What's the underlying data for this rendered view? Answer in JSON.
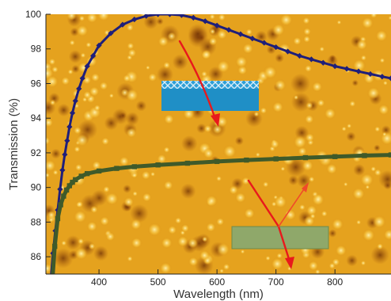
{
  "chart_data": {
    "type": "line",
    "title": "",
    "xlabel": "Wavelength (nm)",
    "ylabel": "Transmission (%)",
    "xlim": [
      310,
      895
    ],
    "ylim": [
      85,
      100
    ],
    "xticks": [
      400,
      500,
      600,
      700,
      800
    ],
    "yticks": [
      86,
      88,
      90,
      92,
      94,
      96,
      98,
      100
    ],
    "grid": false,
    "legend": "none",
    "background": "AFM topography image (orange/yellow grains)",
    "series": [
      {
        "color": "#1f1f7a",
        "marker": "diamond",
        "x": [
          318,
          322,
          326,
          330,
          334,
          338,
          342,
          346,
          350,
          355,
          360,
          366,
          372,
          380,
          390,
          400,
          420,
          440,
          460,
          480,
          500,
          520,
          540,
          560,
          580,
          600,
          620,
          640,
          660,
          680,
          700,
          720,
          740,
          760,
          780,
          800,
          820,
          840,
          860,
          880,
          895
        ],
        "values": [
          84.6,
          86.2,
          87.5,
          88.7,
          89.9,
          91.0,
          91.9,
          92.7,
          93.5,
          94.3,
          95.0,
          95.7,
          96.3,
          97.0,
          97.6,
          98.2,
          98.9,
          99.4,
          99.7,
          99.9,
          100.0,
          100.0,
          99.95,
          99.8,
          99.6,
          99.35,
          99.1,
          98.85,
          98.6,
          98.35,
          98.1,
          97.85,
          97.6,
          97.4,
          97.2,
          97.0,
          96.85,
          96.7,
          96.55,
          96.4,
          96.3
        ]
      },
      {
        "color": "#3f5a2a",
        "marker": "square",
        "x": [
          320,
          325,
          330,
          335,
          340,
          345,
          350,
          355,
          360,
          370,
          380,
          400,
          430,
          460,
          500,
          550,
          600,
          650,
          700,
          750,
          800,
          850,
          895
        ],
        "values": [
          84.2,
          86.6,
          88.2,
          89.0,
          89.5,
          89.85,
          90.1,
          90.3,
          90.45,
          90.65,
          90.8,
          90.95,
          91.1,
          91.2,
          91.3,
          91.4,
          91.5,
          91.58,
          91.65,
          91.72,
          91.78,
          91.84,
          91.88
        ]
      }
    ]
  },
  "colors": {
    "line_dark_blue": "#1f1f7a",
    "line_dark_green": "#3f5a2a",
    "arrow_red": "#e8191c",
    "film_blue": "#1f8fc6",
    "film_green": "#8fa86a"
  },
  "insets": {
    "upper": {
      "icon": "coated-substrate-icon"
    },
    "lower": {
      "icon": "uncoated-substrate-icon"
    }
  }
}
